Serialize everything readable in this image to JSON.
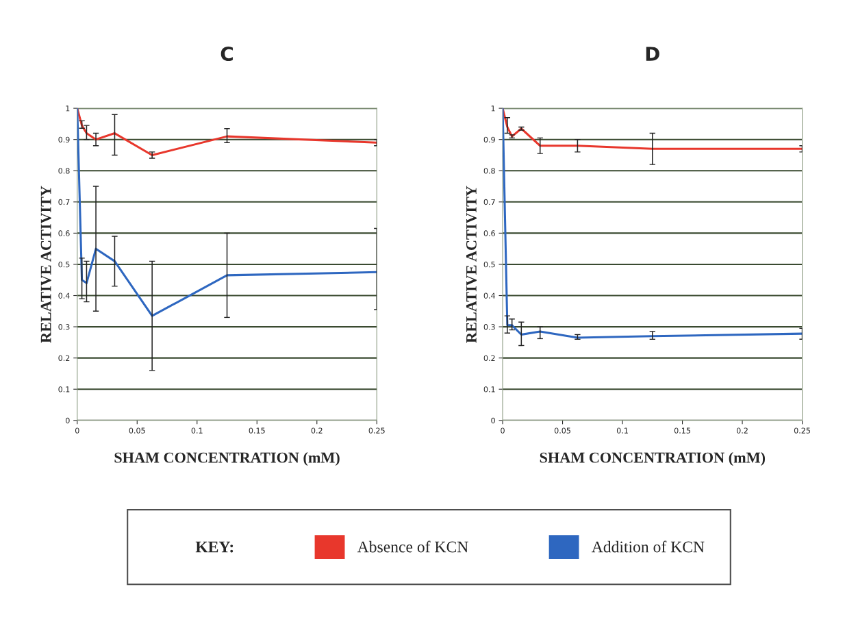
{
  "chart_data": [
    {
      "type": "line",
      "title": "C",
      "xlabel": "SHAM CONCENTRATION (mM)",
      "ylabel": "RELATIVE ACTIVITY",
      "x": [
        0,
        0.0039,
        0.0078,
        0.0156,
        0.03125,
        0.0625,
        0.125,
        0.25
      ],
      "xlim": [
        0,
        0.25
      ],
      "xticks": [
        0,
        0.05,
        0.1,
        0.15,
        0.2,
        0.25
      ],
      "ylim": [
        0,
        1
      ],
      "yticks": [
        0,
        0.1,
        0.2,
        0.3,
        0.4,
        0.5,
        0.6,
        0.7,
        0.8,
        0.9,
        1
      ],
      "grid": "y",
      "legend": "bottom",
      "legend_title": "KEY:",
      "marker": "none",
      "line_style": "solid",
      "series": [
        {
          "name": "Absence of KCN",
          "color": "#e8372c",
          "values": [
            1.0,
            0.945,
            0.92,
            0.9,
            0.92,
            0.85,
            0.91,
            0.89
          ],
          "errors": [
            null,
            [
              0.936,
              0.96
            ],
            [
              0.9,
              0.945
            ],
            [
              0.88,
              0.92
            ],
            [
              0.85,
              0.98
            ],
            [
              0.84,
              0.86
            ],
            [
              0.89,
              0.935
            ],
            [
              0.88,
              0.9
            ]
          ]
        },
        {
          "name": "Addition of KCN",
          "color": "#2e67c0",
          "values": [
            1.0,
            0.45,
            0.44,
            0.55,
            0.51,
            0.335,
            0.465,
            0.475
          ],
          "errors": [
            null,
            [
              0.39,
              0.52
            ],
            [
              0.38,
              0.51
            ],
            [
              0.35,
              0.75
            ],
            [
              0.43,
              0.59
            ],
            [
              0.16,
              0.51
            ],
            [
              0.33,
              0.6
            ],
            [
              0.355,
              0.615
            ]
          ]
        }
      ]
    },
    {
      "type": "line",
      "title": "D",
      "xlabel": "SHAM CONCENTRATION (mM)",
      "ylabel": "RELATIVE ACTIVITY",
      "x": [
        0,
        0.0039,
        0.0078,
        0.0156,
        0.03125,
        0.0625,
        0.125,
        0.25
      ],
      "xlim": [
        0,
        0.25
      ],
      "xticks": [
        0,
        0.05,
        0.1,
        0.15,
        0.2,
        0.25
      ],
      "ylim": [
        0,
        1
      ],
      "yticks": [
        0,
        0.1,
        0.2,
        0.3,
        0.4,
        0.5,
        0.6,
        0.7,
        0.8,
        0.9,
        1
      ],
      "grid": "y",
      "marker": "none",
      "line_style": "solid",
      "series": [
        {
          "color": "#e8372c",
          "values": [
            1.0,
            0.94,
            0.91,
            0.935,
            0.88,
            0.88,
            0.87,
            0.87
          ],
          "errors": [
            null,
            [
              0.92,
              0.97
            ],
            [
              0.905,
              0.915
            ],
            [
              0.93,
              0.94
            ],
            [
              0.855,
              0.905
            ],
            [
              0.86,
              0.9
            ],
            [
              0.82,
              0.92
            ],
            [
              0.86,
              0.88
            ]
          ]
        },
        {
          "color": "#2e67c0",
          "values": [
            1.0,
            0.305,
            0.305,
            0.275,
            0.285,
            0.265,
            0.27,
            0.278
          ],
          "errors": [
            null,
            [
              0.28,
              0.335
            ],
            [
              0.29,
              0.325
            ],
            [
              0.24,
              0.315
            ],
            [
              0.262,
              0.3
            ],
            [
              0.26,
              0.275
            ],
            [
              0.26,
              0.285
            ],
            [
              0.26,
              0.295
            ]
          ]
        }
      ]
    }
  ]
}
